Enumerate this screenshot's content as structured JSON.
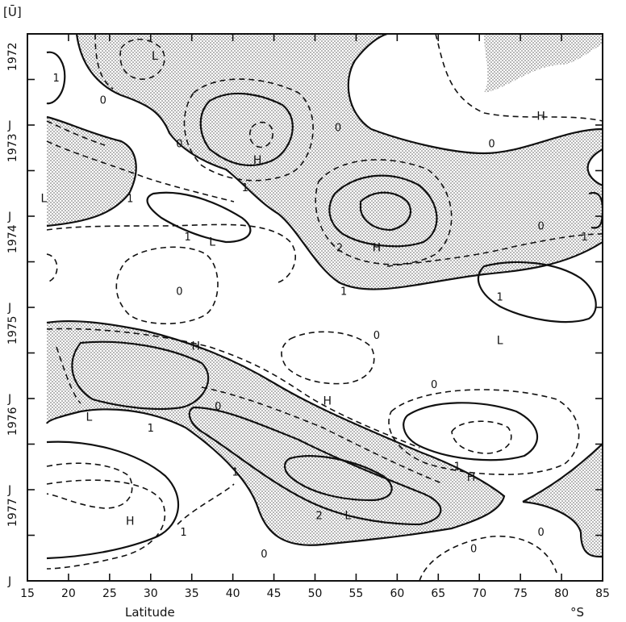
{
  "chart_data": {
    "type": "contour",
    "title": "",
    "corner_label": "[Ū]",
    "xlabel": "Latitude",
    "x_unit": "°S",
    "xlim": [
      15,
      85
    ],
    "x_ticks": [
      15,
      20,
      25,
      30,
      35,
      40,
      45,
      50,
      55,
      60,
      65,
      70,
      75,
      80,
      85
    ],
    "x_tick_labels": [
      "15",
      "20",
      "25",
      "30",
      "35",
      "40",
      "45",
      "50",
      "55",
      "60",
      "65",
      "70",
      "75",
      "80",
      "85"
    ],
    "y_ticks": [
      {
        "label": "1972",
        "kind": "year"
      },
      {
        "label": "J",
        "kind": "month"
      },
      {
        "label": "1973",
        "kind": "year"
      },
      {
        "label": "J",
        "kind": "month"
      },
      {
        "label": "1974",
        "kind": "year"
      },
      {
        "label": "J",
        "kind": "month"
      },
      {
        "label": "1975",
        "kind": "year"
      },
      {
        "label": "J",
        "kind": "month"
      },
      {
        "label": "1976",
        "kind": "year"
      },
      {
        "label": "J",
        "kind": "month"
      },
      {
        "label": "1977",
        "kind": "year"
      },
      {
        "label": "J",
        "kind": "month"
      }
    ],
    "contour_labels": [
      {
        "text": "1",
        "lat": 18.5,
        "t": 0.08
      },
      {
        "text": "0",
        "lat": 24.2,
        "t": 0.12
      },
      {
        "text": "0",
        "lat": 33.5,
        "t": 0.2
      },
      {
        "text": "1",
        "lat": 41.5,
        "t": 0.28
      },
      {
        "text": "0",
        "lat": 52.8,
        "t": 0.17
      },
      {
        "text": "0",
        "lat": 71.5,
        "t": 0.2
      },
      {
        "text": "1",
        "lat": 27.5,
        "t": 0.3
      },
      {
        "text": "1",
        "lat": 34.5,
        "t": 0.37
      },
      {
        "text": "0",
        "lat": 33.5,
        "t": 0.47
      },
      {
        "text": "1",
        "lat": 53.5,
        "t": 0.47
      },
      {
        "text": "2",
        "lat": 53.0,
        "t": 0.39
      },
      {
        "text": "0",
        "lat": 57.5,
        "t": 0.55
      },
      {
        "text": "0",
        "lat": 77.5,
        "t": 0.35
      },
      {
        "text": "1",
        "lat": 82.8,
        "t": 0.37
      },
      {
        "text": "1",
        "lat": 72.5,
        "t": 0.48
      },
      {
        "text": "0",
        "lat": 38.2,
        "t": 0.68
      },
      {
        "text": "0",
        "lat": 64.5,
        "t": 0.64
      },
      {
        "text": "1",
        "lat": 30.0,
        "t": 0.72
      },
      {
        "text": "1",
        "lat": 40.3,
        "t": 0.8
      },
      {
        "text": "1",
        "lat": 67.3,
        "t": 0.79
      },
      {
        "text": "2",
        "lat": 50.5,
        "t": 0.88
      },
      {
        "text": "1",
        "lat": 34.0,
        "t": 0.91
      },
      {
        "text": "0",
        "lat": 43.8,
        "t": 0.95
      },
      {
        "text": "0",
        "lat": 69.3,
        "t": 0.94
      },
      {
        "text": "0",
        "lat": 77.5,
        "t": 0.91
      }
    ],
    "extrema": [
      {
        "text": "L",
        "lat": 30.5,
        "t": 0.04
      },
      {
        "text": "H",
        "lat": 77.5,
        "t": 0.15
      },
      {
        "text": "H",
        "lat": 43.0,
        "t": 0.23
      },
      {
        "text": "L",
        "lat": 17.0,
        "t": 0.3
      },
      {
        "text": "L",
        "lat": 37.5,
        "t": 0.38
      },
      {
        "text": "H",
        "lat": 57.5,
        "t": 0.39
      },
      {
        "text": "H",
        "lat": 35.5,
        "t": 0.57
      },
      {
        "text": "L",
        "lat": 72.5,
        "t": 0.56
      },
      {
        "text": "H",
        "lat": 51.5,
        "t": 0.67
      },
      {
        "text": "L",
        "lat": 22.5,
        "t": 0.7
      },
      {
        "text": "H",
        "lat": 69.0,
        "t": 0.81
      },
      {
        "text": "L",
        "lat": 54.0,
        "t": 0.88
      },
      {
        "text": "H",
        "lat": 27.5,
        "t": 0.89
      }
    ],
    "negative_regions_shaded": true,
    "grid": false,
    "legend": "none"
  }
}
